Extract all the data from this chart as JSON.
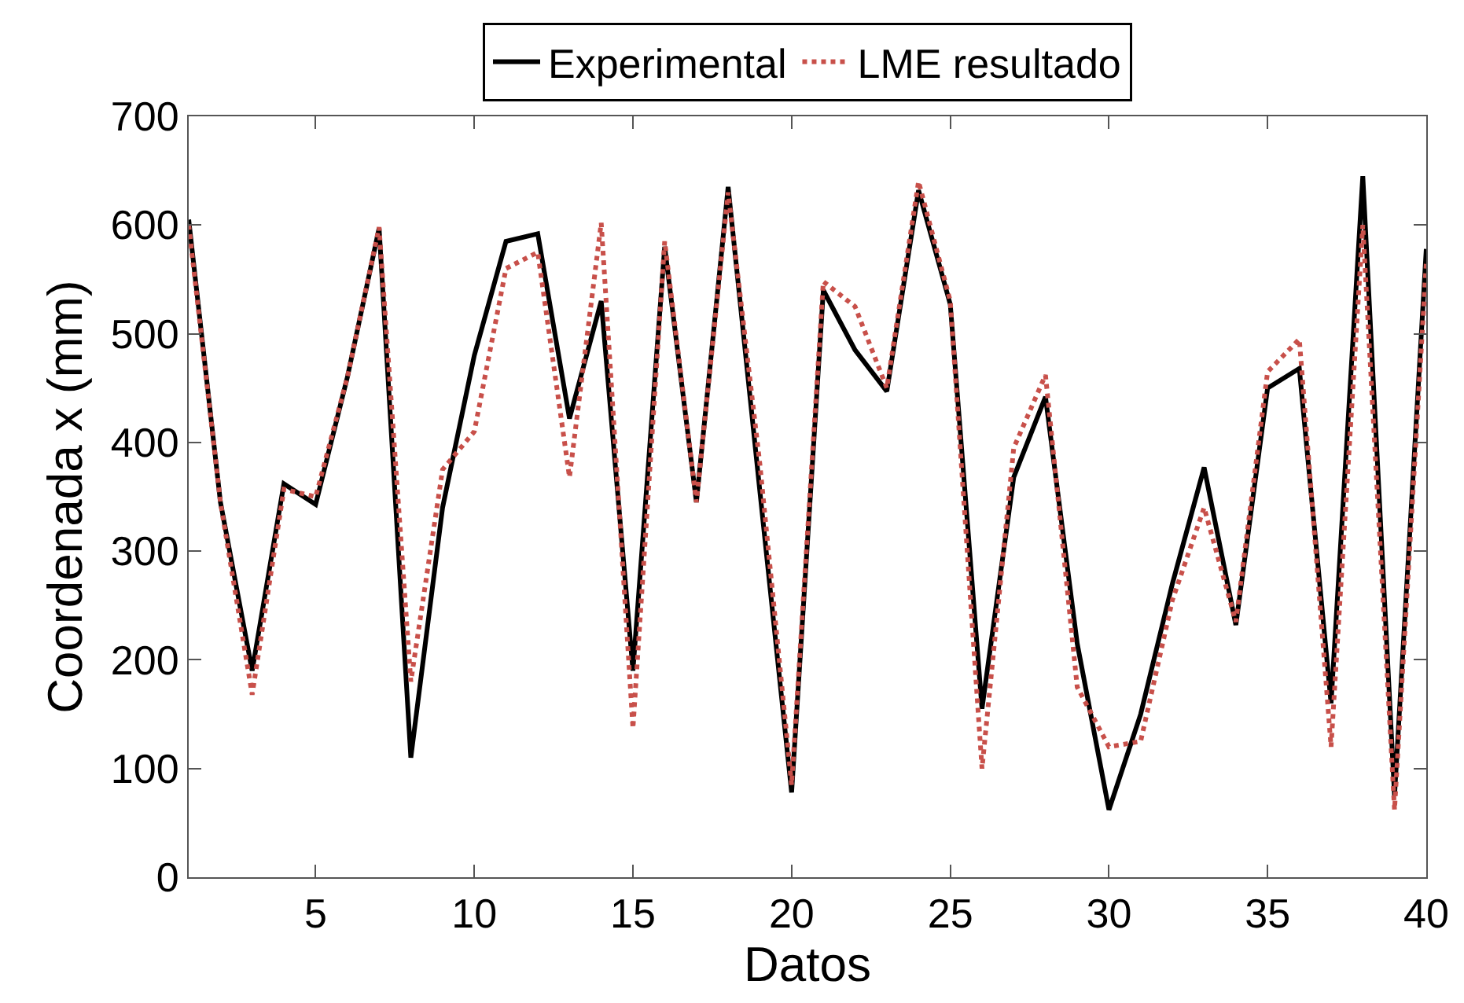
{
  "chart_data": {
    "type": "line",
    "xlabel": "Datos",
    "ylabel": "Coordenada x (mm)",
    "x": [
      1,
      2,
      3,
      4,
      5,
      6,
      7,
      8,
      9,
      10,
      11,
      12,
      13,
      14,
      15,
      16,
      17,
      18,
      19,
      20,
      21,
      22,
      23,
      24,
      25,
      26,
      27,
      28,
      29,
      30,
      31,
      32,
      33,
      34,
      35,
      36,
      37,
      38,
      39,
      40
    ],
    "series": [
      {
        "name": "Experimental",
        "color": "#000000",
        "line_style": "solid",
        "values": [
          605,
          345,
          190,
          362,
          343,
          460,
          597,
          110,
          340,
          480,
          585,
          592,
          422,
          530,
          190,
          580,
          345,
          635,
          355,
          78,
          540,
          485,
          447,
          632,
          527,
          155,
          368,
          442,
          215,
          62,
          150,
          270,
          377,
          232,
          450,
          468,
          160,
          645,
          75,
          578
        ]
      },
      {
        "name": "LME resultado",
        "color": "#c8504a",
        "line_style": "dotted",
        "values": [
          600,
          345,
          168,
          357,
          350,
          460,
          598,
          180,
          375,
          410,
          560,
          575,
          368,
          602,
          137,
          585,
          345,
          630,
          380,
          85,
          548,
          525,
          450,
          640,
          530,
          100,
          395,
          462,
          175,
          120,
          125,
          255,
          340,
          235,
          465,
          495,
          120,
          600,
          62,
          565
        ]
      }
    ],
    "xlim": [
      1,
      40
    ],
    "xticks": [
      5,
      10,
      15,
      20,
      25,
      30,
      35,
      40
    ],
    "ylim": [
      0,
      700
    ],
    "yticks": [
      0,
      100,
      200,
      300,
      400,
      500,
      600,
      700
    ],
    "grid": false,
    "legend": "top",
    "marker": "none"
  }
}
